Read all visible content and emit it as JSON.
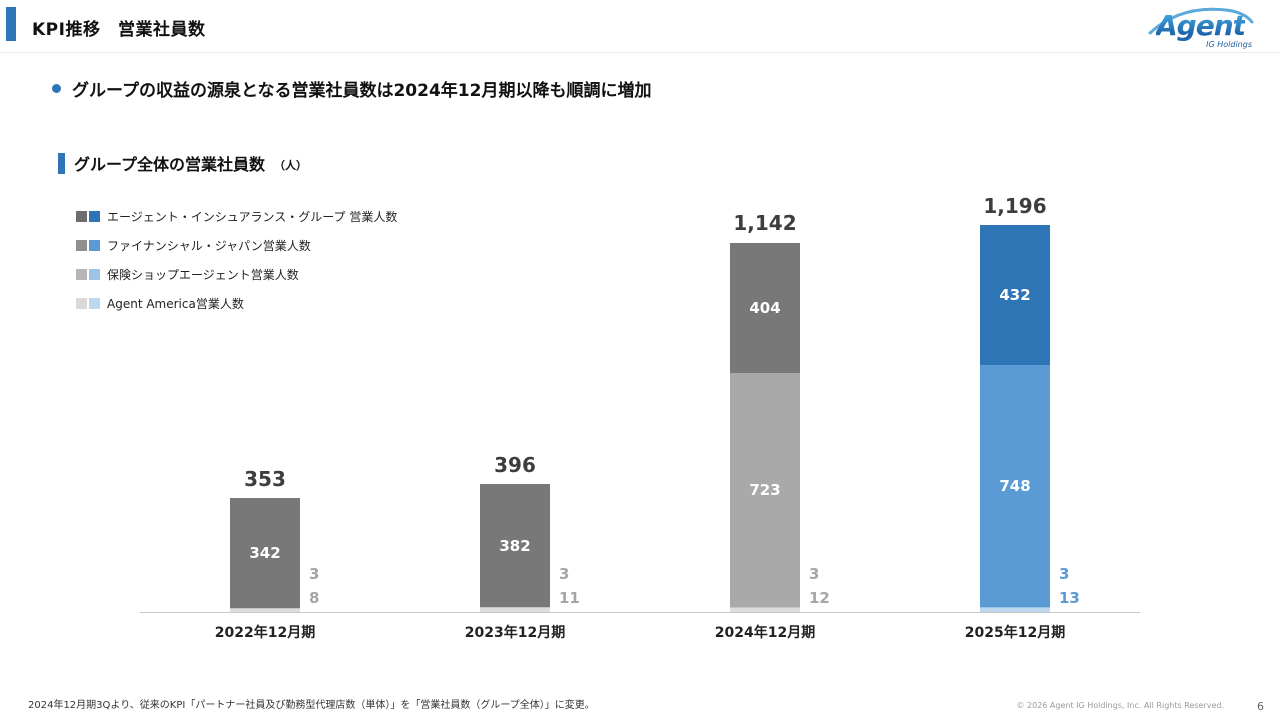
{
  "header": {
    "title": "KPI推移　営業社員数"
  },
  "logo": {
    "name": "Agent",
    "sub": "IG Holdings"
  },
  "bullet": {
    "text": "グループの収益の源泉となる営業社員数は2024年12月期以降も順調に増加"
  },
  "section": {
    "title": "グループ全体の営業社員数",
    "unit": "（人）"
  },
  "legend": {
    "items": [
      {
        "label": "エージェント・インシュアランス・グループ 営業人数",
        "swatch_gray": "#6d6d6d",
        "swatch_blue": "#2e75b6"
      },
      {
        "label": "ファイナンシャル・ジャパン営業人数",
        "swatch_gray": "#8f8f8f",
        "swatch_blue": "#5b9bd5"
      },
      {
        "label": "保険ショップエージェント営業人数",
        "swatch_gray": "#b5b5b5",
        "swatch_blue": "#9dc3e6"
      },
      {
        "label": "Agent America営業人数",
        "swatch_gray": "#d9d9d9",
        "swatch_blue": "#bdd7ee"
      }
    ]
  },
  "chart_data": {
    "type": "bar",
    "stacked": true,
    "title": "グループ全体の営業社員数（人）",
    "xlabel": "",
    "ylabel": "人",
    "ylim": [
      0,
      1250
    ],
    "grid": false,
    "legend_position": "upper-left",
    "categories": [
      "2022年12月期",
      "2023年12月期",
      "2024年12月期",
      "2025年12月期"
    ],
    "series": [
      {
        "name": "エージェント・インシュアランス・グループ 営業人数",
        "values": [
          342,
          382,
          404,
          432
        ]
      },
      {
        "name": "ファイナンシャル・ジャパン営業人数",
        "values": [
          0,
          0,
          723,
          748
        ]
      },
      {
        "name": "保険ショップエージェント営業人数",
        "values": [
          3,
          3,
          3,
          3
        ]
      },
      {
        "name": "Agent America営業人数",
        "values": [
          8,
          11,
          12,
          13
        ]
      }
    ],
    "totals_display": [
      "353",
      "396",
      "1,142",
      "1,196"
    ],
    "year_palette": [
      "gray",
      "gray",
      "gray",
      "blue"
    ],
    "palettes": {
      "gray": [
        "#787878",
        "#a9a9a9",
        "#c6c6c6",
        "#dddddd"
      ],
      "blue": [
        "#2e75b6",
        "#5b9bd5",
        "#9dc3e6",
        "#bdd7ee"
      ]
    },
    "side_label_colors": {
      "gray": "#a6a6a6",
      "blue": "#5b9bd5"
    },
    "side_label_series": [
      2,
      3
    ]
  },
  "footer": {
    "note": "2024年12月期3Qより、従来のKPI「パートナー社員及び勤務型代理店数（単体）」を「営業社員数（グループ全体）」に変更。",
    "copyright": "© 2026 Agent IG Holdings, Inc. All Rights Reserved.",
    "page_number": "6"
  }
}
